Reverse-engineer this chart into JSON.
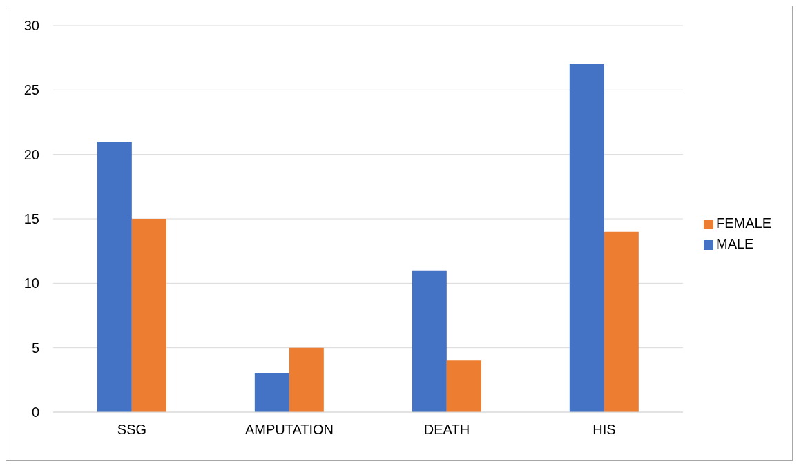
{
  "chart_data": {
    "type": "bar",
    "categories": [
      "SSG",
      "AMPUTATION",
      "DEATH",
      "HIS"
    ],
    "series": [
      {
        "name": "MALE",
        "color": "#4472c4",
        "values": [
          21,
          3,
          11,
          27
        ]
      },
      {
        "name": "FEMALE",
        "color": "#ed7d31",
        "values": [
          15,
          5,
          4,
          14
        ]
      }
    ],
    "ylim": [
      0,
      30
    ],
    "yticks": [
      0,
      5,
      10,
      15,
      20,
      25,
      30
    ],
    "grid": "y",
    "legend": "right"
  }
}
